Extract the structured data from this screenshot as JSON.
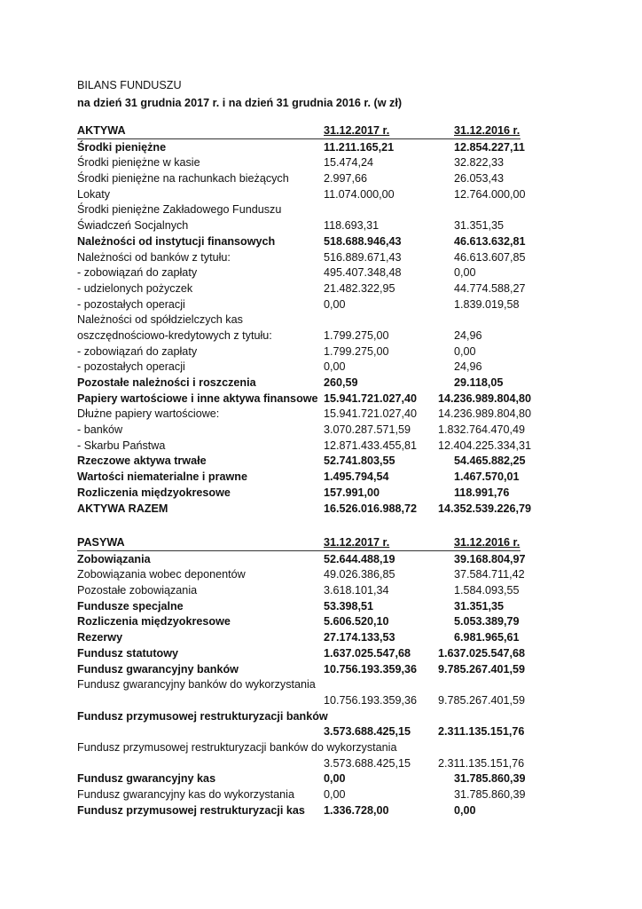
{
  "title": "BILANS FUNDUSZU",
  "subtitle": "na dzień 31 grudnia 2017 r. i na dzień 31 grudnia 2016 r. (w zł)",
  "aktywa": {
    "header": {
      "label": "AKTYWA",
      "col2017": "31.12.2017 r.",
      "col2016": "31.12.2016 r."
    },
    "rows": [
      {
        "label": "Środki pieniężne",
        "v2017": "11.211.165,21",
        "v2016": "12.854.227,11",
        "bold": true
      },
      {
        "label": "Środki pieniężne w kasie",
        "v2017": "15.474,24",
        "v2016": "32.822,33"
      },
      {
        "label": "Środki pieniężne na rachunkach bieżących",
        "v2017": "2.997,66",
        "v2016": "26.053,43"
      },
      {
        "label": "Lokaty",
        "v2017": "11.074.000,00",
        "v2016": "12.764.000,00"
      },
      {
        "label": "Środki pieniężne Zakładowego Funduszu",
        "v2017": "",
        "v2016": ""
      },
      {
        "label": "Świadczeń Socjalnych",
        "v2017": "118.693,31",
        "v2016": "31.351,35"
      },
      {
        "label": "Należności od instytucji finansowych",
        "v2017": "518.688.946,43",
        "v2016": "46.613.632,81",
        "bold": true
      },
      {
        "label": "Należności od banków z tytułu:",
        "v2017": "516.889.671,43",
        "v2016": "46.613.607,85"
      },
      {
        "label": "- zobowiązań do zapłaty",
        "v2017": "495.407.348,48",
        "v2016": "0,00"
      },
      {
        "label": "- udzielonych pożyczek",
        "v2017": "21.482.322,95",
        "v2016": "44.774.588,27"
      },
      {
        "label": "- pozostałych operacji",
        "v2017": "0,00",
        "v2016": "1.839.019,58"
      },
      {
        "label": "Należności od spółdzielczych kas",
        "v2017": "",
        "v2016": ""
      },
      {
        "label": "oszczędnościowo-kredytowych z tytułu:",
        "v2017": "1.799.275,00",
        "v2016": "24,96"
      },
      {
        "label": "- zobowiązań do zapłaty",
        "v2017": "1.799.275,00",
        "v2016": "0,00"
      },
      {
        "label": "- pozostałych operacji",
        "v2017": "0,00",
        "v2016": "24,96"
      },
      {
        "label": "Pozostałe należności i roszczenia",
        "v2017": "260,59",
        "v2016": "29.118,05",
        "bold": true
      },
      {
        "label": "Papiery wartościowe i inne aktywa finansowe",
        "v2017": "15.941.721.027,40",
        "v2016": "14.236.989.804,80",
        "bold": true
      },
      {
        "label": "Dłużne papiery wartościowe:",
        "v2017": "15.941.721.027,40",
        "v2016": "14.236.989.804,80"
      },
      {
        "label": "- banków",
        "v2017": "3.070.287.571,59",
        "v2016": "1.832.764.470,49"
      },
      {
        "label": "- Skarbu Państwa",
        "v2017": "12.871.433.455,81",
        "v2016": "12.404.225.334,31"
      },
      {
        "label": "Rzeczowe aktywa trwałe",
        "v2017": "52.741.803,55",
        "v2016": "54.465.882,25",
        "bold": true
      },
      {
        "label": "Wartości niematerialne i prawne",
        "v2017": "1.495.794,54",
        "v2016": "1.467.570,01",
        "bold": true
      },
      {
        "label": "Rozliczenia międzyokresowe",
        "v2017": "157.991,00",
        "v2016": "118.991,76",
        "bold": true
      },
      {
        "label": "AKTYWA RAZEM",
        "v2017": "16.526.016.988,72",
        "v2016": "14.352.539.226,79",
        "bold": true
      }
    ]
  },
  "pasywa": {
    "header": {
      "label": "PASYWA",
      "col2017": "31.12.2017 r.",
      "col2016": "31.12.2016 r."
    },
    "rows": [
      {
        "label": "Zobowiązania",
        "v2017": "52.644.488,19",
        "v2016": "39.168.804,97",
        "bold": true
      },
      {
        "label": "Zobowiązania wobec deponentów",
        "v2017": "49.026.386,85",
        "v2016": "37.584.711,42"
      },
      {
        "label": "Pozostałe zobowiązania",
        "v2017": "3.618.101,34",
        "v2016": "1.584.093,55"
      },
      {
        "label": "Fundusze specjalne",
        "v2017": "53.398,51",
        "v2016": "31.351,35",
        "bold": true
      },
      {
        "label": "Rozliczenia międzyokresowe",
        "v2017": "5.606.520,10",
        "v2016": "5.053.389,79",
        "bold": true
      },
      {
        "label": "Rezerwy",
        "v2017": "27.174.133,53",
        "v2016": "6.981.965,61",
        "bold": true
      },
      {
        "label": "Fundusz statutowy",
        "v2017": "1.637.025.547,68",
        "v2016": "1.637.025.547,68",
        "bold": true
      },
      {
        "label": "Fundusz gwarancyjny banków",
        "v2017": "10.756.193.359,36",
        "v2016": "9.785.267.401,59",
        "bold": true
      },
      {
        "label": "Fundusz gwarancyjny banków do wykorzystania",
        "v2017": "",
        "v2016": ""
      },
      {
        "label": "",
        "v2017": "10.756.193.359,36",
        "v2016": "9.785.267.401,59"
      },
      {
        "label": "Fundusz przymusowej restrukturyzacji banków",
        "v2017": "",
        "v2016": "",
        "bold": true
      },
      {
        "label": "",
        "v2017": "3.573.688.425,15",
        "v2016": "2.311.135.151,76",
        "bold": true
      },
      {
        "label": "Fundusz przymusowej restrukturyzacji banków do wykorzystania",
        "v2017": "",
        "v2016": ""
      },
      {
        "label": "",
        "v2017": "3.573.688.425,15",
        "v2016": "2.311.135.151,76"
      },
      {
        "label": "Fundusz gwarancyjny kas",
        "v2017": "0,00",
        "v2016": "31.785.860,39",
        "bold": true
      },
      {
        "label": "Fundusz gwarancyjny kas do wykorzystania",
        "v2017": "0,00",
        "v2016": "31.785.860,39"
      },
      {
        "label": "Fundusz przymusowej restrukturyzacji kas",
        "v2017": "1.336.728,00",
        "v2016": "0,00",
        "bold": true
      }
    ]
  }
}
